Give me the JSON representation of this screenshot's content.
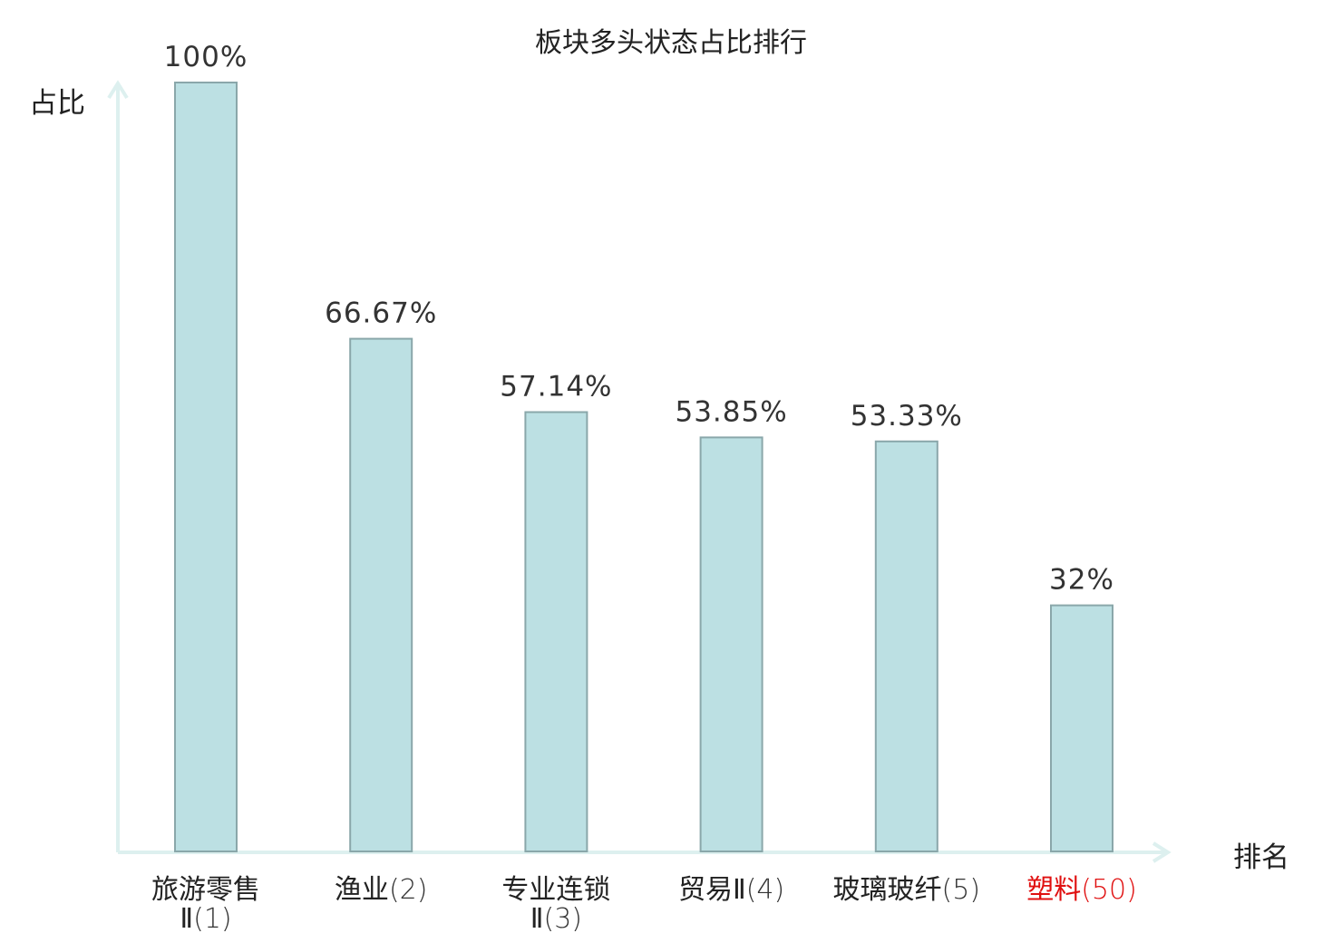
{
  "chart_data": {
    "type": "bar",
    "title": "板块多头状态占比排行",
    "ylabel": "占比",
    "xlabel": "排名",
    "ylim": [
      0,
      100
    ],
    "grid": false,
    "categories": [
      {
        "name": "旅游零售Ⅱ",
        "rank": "(1)",
        "lines": [
          "旅游零售",
          "Ⅱ(1)"
        ],
        "highlight": false
      },
      {
        "name": "渔业",
        "rank": "(2)",
        "lines": [
          "渔业(2)"
        ],
        "highlight": false
      },
      {
        "name": "专业连锁Ⅱ",
        "rank": "(3)",
        "lines": [
          "专业连锁",
          "Ⅱ(3)"
        ],
        "highlight": false
      },
      {
        "name": "贸易Ⅱ",
        "rank": "(4)",
        "lines": [
          "贸易Ⅱ(4)"
        ],
        "highlight": false
      },
      {
        "name": "玻璃玻纤",
        "rank": "(5)",
        "lines": [
          "玻璃玻纤(5)"
        ],
        "highlight": false
      },
      {
        "name": "塑料",
        "rank": "(50)",
        "lines": [
          "塑料(50)"
        ],
        "highlight": true
      }
    ],
    "values": [
      100,
      66.67,
      57.14,
      53.85,
      53.33,
      32
    ],
    "value_labels": [
      "100%",
      "66.67%",
      "57.14%",
      "53.85%",
      "53.33%",
      "32%"
    ],
    "colors": {
      "bar_fill": "#bce0e3",
      "bar_stroke": "#8aa7aa",
      "axis": "#ddf0ef",
      "highlight_text": "#e01010"
    }
  }
}
